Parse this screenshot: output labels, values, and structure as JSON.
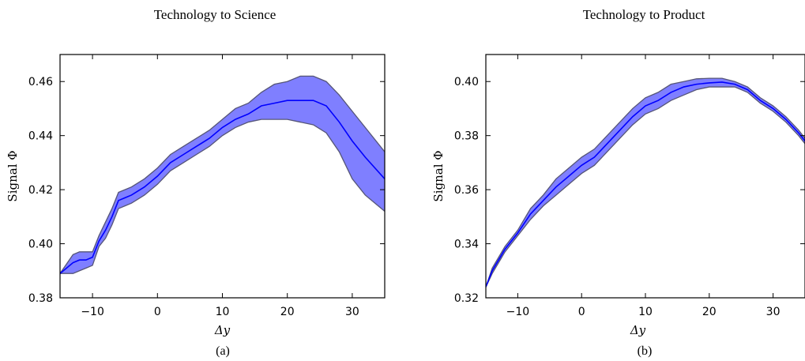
{
  "chart_data": [
    {
      "type": "line",
      "title": "Technology to Science",
      "xlabel": "Δy",
      "ylabel": "Signal Φ",
      "caption": "(a)",
      "xlim": [
        -15,
        35
      ],
      "ylim": [
        0.38,
        0.47
      ],
      "xticks": [
        -10,
        0,
        10,
        20,
        30
      ],
      "xtick_labels": [
        "−10",
        "0",
        "10",
        "20",
        "30"
      ],
      "yticks": [
        0.38,
        0.4,
        0.42,
        0.44,
        0.46
      ],
      "ytick_labels": [
        "0.38",
        "0.40",
        "0.42",
        "0.44",
        "0.46"
      ],
      "grid": false,
      "line_color": "#0000ff",
      "band_color": "#7f7fff",
      "series": [
        {
          "x": [
            -15,
            -13,
            -12,
            -11,
            -10,
            -9,
            -8,
            -7,
            -6,
            -5,
            -4,
            -2,
            0,
            2,
            4,
            6,
            8,
            10,
            12,
            14,
            16,
            18,
            20,
            22,
            24,
            26,
            28,
            30,
            32,
            35
          ],
          "y": [
            0.389,
            0.393,
            0.394,
            0.394,
            0.395,
            0.401,
            0.405,
            0.41,
            0.416,
            0.417,
            0.418,
            0.421,
            0.425,
            0.43,
            0.433,
            0.436,
            0.439,
            0.443,
            0.446,
            0.448,
            0.451,
            0.452,
            0.453,
            0.453,
            0.453,
            0.451,
            0.445,
            0.438,
            0.432,
            0.424
          ],
          "lower": [
            0.389,
            0.389,
            0.39,
            0.391,
            0.392,
            0.399,
            0.402,
            0.407,
            0.413,
            0.414,
            0.415,
            0.418,
            0.422,
            0.427,
            0.43,
            0.433,
            0.436,
            0.44,
            0.443,
            0.445,
            0.446,
            0.446,
            0.446,
            0.445,
            0.444,
            0.441,
            0.434,
            0.424,
            0.418,
            0.412
          ],
          "upper": [
            0.389,
            0.396,
            0.397,
            0.397,
            0.397,
            0.403,
            0.408,
            0.413,
            0.419,
            0.42,
            0.421,
            0.424,
            0.428,
            0.433,
            0.436,
            0.439,
            0.442,
            0.446,
            0.45,
            0.452,
            0.456,
            0.459,
            0.46,
            0.462,
            0.462,
            0.46,
            0.455,
            0.449,
            0.443,
            0.434
          ]
        }
      ]
    },
    {
      "type": "line",
      "title": "Technology to Product",
      "xlabel": "Δy",
      "ylabel": "Signal Φ",
      "caption": "(b)",
      "xlim": [
        -15,
        35
      ],
      "ylim": [
        0.32,
        0.41
      ],
      "xticks": [
        -10,
        0,
        10,
        20,
        30
      ],
      "xtick_labels": [
        "−10",
        "0",
        "10",
        "20",
        "30"
      ],
      "yticks": [
        0.32,
        0.34,
        0.36,
        0.38,
        0.4
      ],
      "ytick_labels": [
        "0.32",
        "0.34",
        "0.36",
        "0.38",
        "0.40"
      ],
      "grid": false,
      "line_color": "#0000ff",
      "band_color": "#7f7fff",
      "series": [
        {
          "x": [
            -15,
            -14,
            -12,
            -10,
            -8,
            -6,
            -4,
            -2,
            0,
            2,
            4,
            6,
            8,
            10,
            12,
            14,
            16,
            18,
            20,
            22,
            24,
            26,
            28,
            30,
            32,
            34,
            35
          ],
          "y": [
            0.324,
            0.33,
            0.338,
            0.344,
            0.351,
            0.356,
            0.361,
            0.365,
            0.369,
            0.372,
            0.377,
            0.382,
            0.387,
            0.391,
            0.393,
            0.396,
            0.398,
            0.399,
            0.3995,
            0.3998,
            0.399,
            0.397,
            0.393,
            0.39,
            0.386,
            0.381,
            0.378
          ],
          "lower": [
            0.324,
            0.329,
            0.337,
            0.343,
            0.349,
            0.354,
            0.358,
            0.362,
            0.366,
            0.369,
            0.374,
            0.379,
            0.384,
            0.388,
            0.39,
            0.393,
            0.395,
            0.397,
            0.398,
            0.398,
            0.398,
            0.396,
            0.392,
            0.389,
            0.385,
            0.38,
            0.377
          ],
          "upper": [
            0.324,
            0.331,
            0.339,
            0.345,
            0.353,
            0.358,
            0.364,
            0.368,
            0.372,
            0.375,
            0.38,
            0.385,
            0.39,
            0.394,
            0.396,
            0.399,
            0.4,
            0.401,
            0.4012,
            0.4012,
            0.4,
            0.398,
            0.394,
            0.391,
            0.387,
            0.382,
            0.379
          ]
        }
      ]
    }
  ]
}
